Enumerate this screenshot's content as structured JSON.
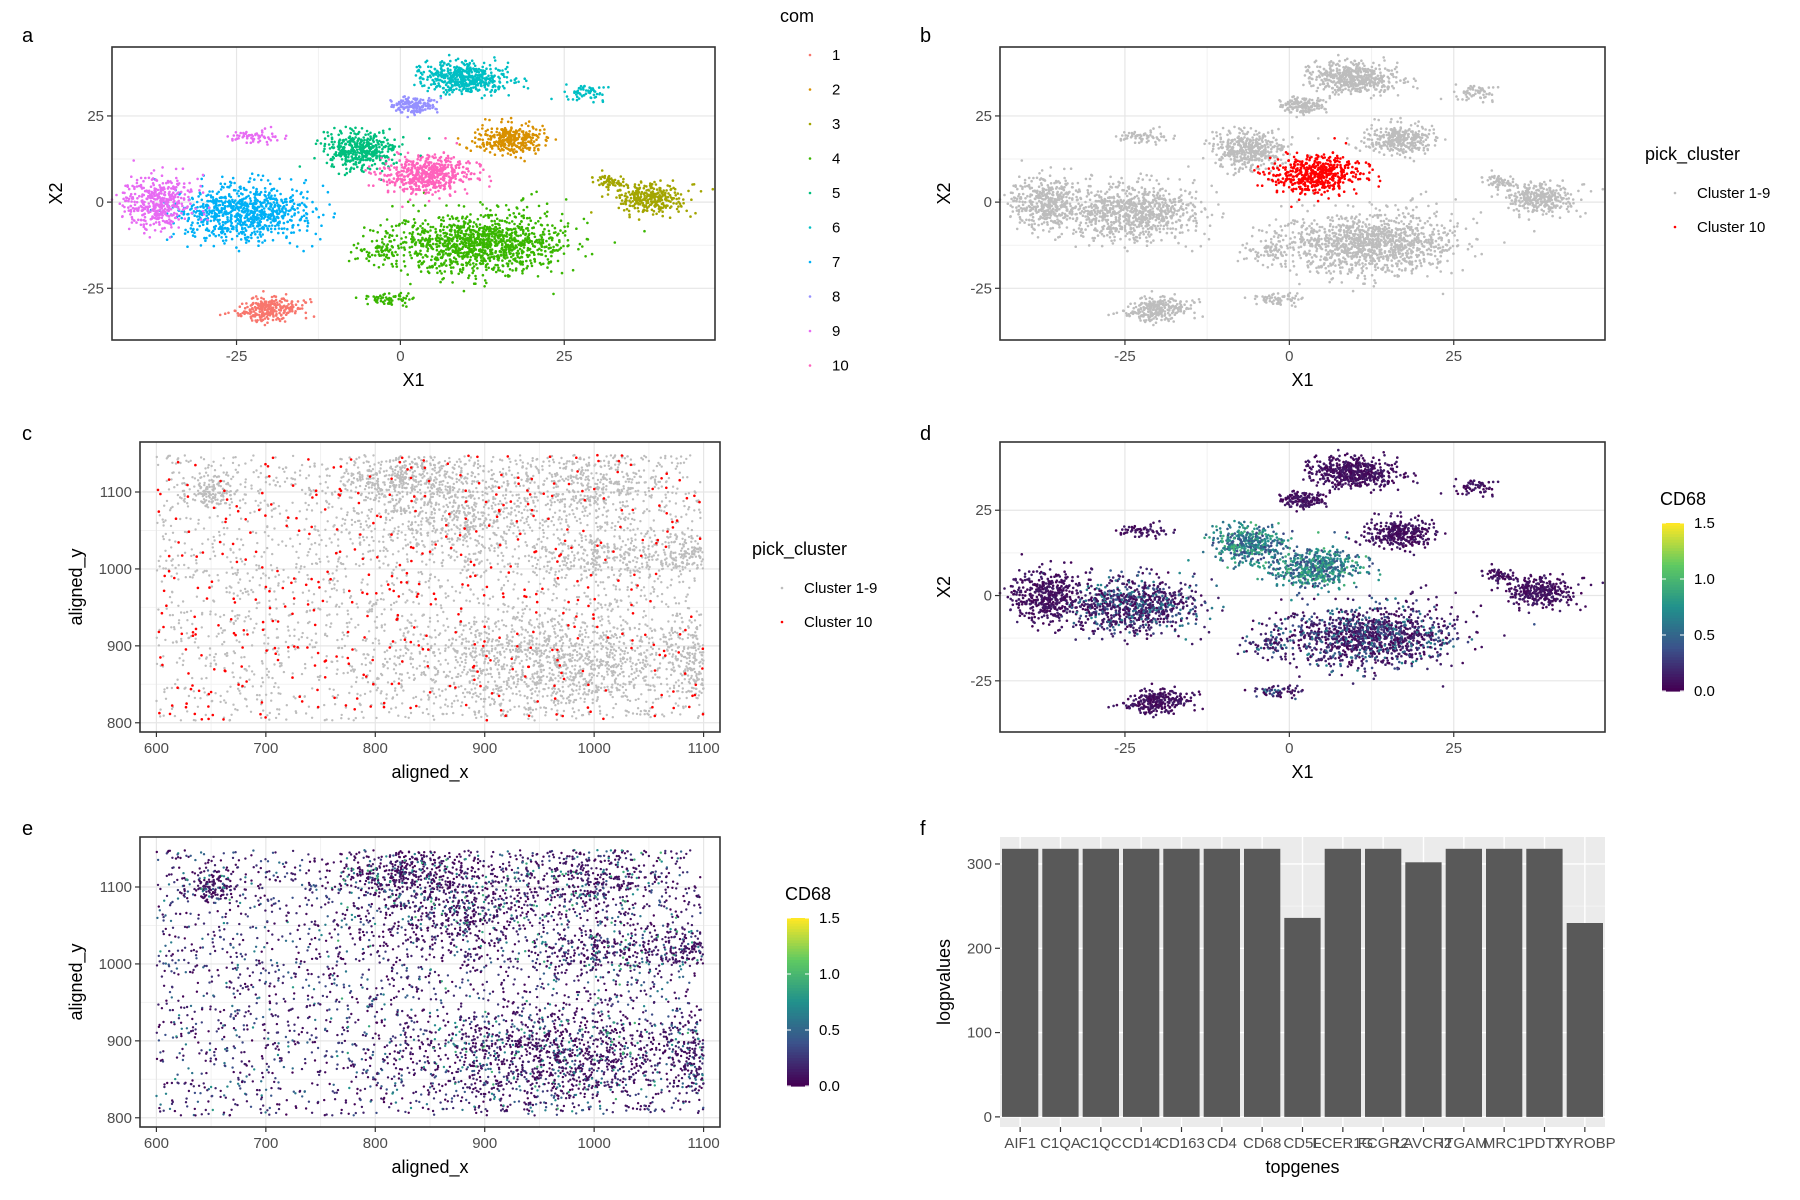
{
  "panels": {
    "a": {
      "tag": "a",
      "chart_data": {
        "type": "scatter",
        "xlabel": "X1",
        "ylabel": "X2",
        "xlim": [
          -44,
          48
        ],
        "ylim": [
          -40,
          45
        ],
        "xticks": [
          -25,
          0,
          25
        ],
        "yticks": [
          -25,
          0,
          25
        ],
        "grid": true,
        "legend": {
          "title": "com",
          "placement": "right",
          "entries": [
            "1",
            "2",
            "3",
            "4",
            "5",
            "6",
            "7",
            "8",
            "9",
            "10"
          ],
          "colors": [
            "#F8766D",
            "#D89000",
            "#A3A500",
            "#39B600",
            "#00BF7D",
            "#00BFC4",
            "#00B0F6",
            "#9590FF",
            "#E76BF3",
            "#FF62BC"
          ]
        },
        "clusters": [
          {
            "name": "1",
            "center": [
              -20,
              -31
            ],
            "spread": [
              4.5,
              3
            ]
          },
          {
            "name": "2",
            "center": [
              17,
              18
            ],
            "spread": [
              5,
              4
            ]
          },
          {
            "name": "3",
            "center": [
              38,
              1
            ],
            "spread": [
              5,
              4
            ]
          },
          {
            "name": "4",
            "center": [
              12,
              -12
            ],
            "spread": [
              12,
              8
            ]
          },
          {
            "name": "5",
            "center": [
              -6,
              15
            ],
            "spread": [
              5,
              5
            ]
          },
          {
            "name": "6",
            "center": [
              10,
              36
            ],
            "spread": [
              6,
              4
            ]
          },
          {
            "name": "7",
            "center": [
              -24,
              -3
            ],
            "spread": [
              9,
              7
            ]
          },
          {
            "name": "8",
            "center": [
              2,
              28
            ],
            "spread": [
              3,
              2
            ]
          },
          {
            "name": "9",
            "center": [
              -37,
              0
            ],
            "spread": [
              5,
              7
            ]
          },
          {
            "name": "10",
            "center": [
              4,
              8
            ],
            "spread": [
              6,
              5
            ]
          }
        ]
      }
    },
    "b": {
      "tag": "b",
      "chart_data": {
        "type": "scatter",
        "xlabel": "X1",
        "ylabel": "X2",
        "xlim": [
          -44,
          48
        ],
        "ylim": [
          -40,
          45
        ],
        "xticks": [
          -25,
          0,
          25
        ],
        "yticks": [
          -25,
          0,
          25
        ],
        "grid": true,
        "legend": {
          "title": "pick_cluster",
          "placement": "right",
          "entries": [
            "Cluster 1-9",
            "Cluster 10"
          ],
          "colors": [
            "#bdbdbd",
            "#ff0000"
          ]
        },
        "highlight_center": [
          4,
          8
        ]
      }
    },
    "c": {
      "tag": "c",
      "chart_data": {
        "type": "scatter",
        "xlabel": "aligned_x",
        "ylabel": "aligned_y",
        "xlim": [
          585,
          1115
        ],
        "ylim": [
          788,
          1165
        ],
        "xticks": [
          600,
          700,
          800,
          900,
          1000,
          1100
        ],
        "yticks": [
          800,
          900,
          1000,
          1100
        ],
        "grid": true,
        "legend": {
          "title": "pick_cluster",
          "placement": "right",
          "entries": [
            "Cluster 1-9",
            "Cluster 10"
          ],
          "colors": [
            "#bdbdbd",
            "#ff0000"
          ]
        }
      }
    },
    "d": {
      "tag": "d",
      "chart_data": {
        "type": "scatter",
        "xlabel": "X1",
        "ylabel": "X2",
        "xlim": [
          -44,
          48
        ],
        "ylim": [
          -40,
          45
        ],
        "xticks": [
          -25,
          0,
          25
        ],
        "yticks": [
          -25,
          0,
          25
        ],
        "grid": true,
        "colorbar": {
          "title": "CD68",
          "range": [
            0,
            1.5
          ],
          "ticks": [
            "1.5",
            "1.0",
            "0.5",
            "0.0"
          ],
          "colors": [
            "#440154",
            "#3b528b",
            "#21918c",
            "#5ec962",
            "#fde725"
          ]
        }
      }
    },
    "e": {
      "tag": "e",
      "chart_data": {
        "type": "scatter",
        "xlabel": "aligned_x",
        "ylabel": "aligned_y",
        "xlim": [
          585,
          1115
        ],
        "ylim": [
          788,
          1165
        ],
        "xticks": [
          600,
          700,
          800,
          900,
          1000,
          1100
        ],
        "yticks": [
          800,
          900,
          1000,
          1100
        ],
        "grid": true,
        "colorbar": {
          "title": "CD68",
          "range": [
            0,
            1.5
          ],
          "ticks": [
            "1.5",
            "1.0",
            "0.5",
            "0.0"
          ],
          "colors": [
            "#440154",
            "#3b528b",
            "#21918c",
            "#5ec962",
            "#fde725"
          ]
        }
      }
    },
    "f": {
      "tag": "f",
      "chart_data": {
        "type": "bar",
        "xlabel": "topgenes",
        "ylabel": "logpvalues",
        "categories": [
          "AIF1",
          "C1QA",
          "C1QC",
          "CD14",
          "CD163",
          "CD4",
          "CD68",
          "CD5L",
          "FCER1G",
          "FCGR2",
          "LAVCR2",
          "ITGAM",
          "MRC1",
          "PDTX",
          "TYROBP"
        ],
        "values": [
          318,
          318,
          318,
          318,
          318,
          318,
          318,
          236,
          318,
          318,
          302,
          318,
          318,
          318,
          230
        ],
        "ylim": [
          -12,
          332
        ],
        "yticks": [
          0,
          100,
          200,
          300
        ],
        "grid": true,
        "bar_color": "#595959"
      }
    }
  }
}
